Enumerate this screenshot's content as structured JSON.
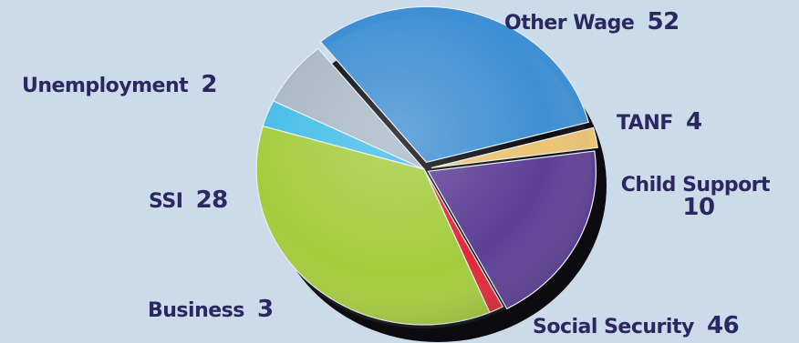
{
  "chart_data": {
    "type": "pie",
    "title": "",
    "legend": "none",
    "slices": [
      {
        "label": "Other Wage",
        "value": 52,
        "color": "#a3cc3c"
      },
      {
        "label": "TANF",
        "value": 4,
        "color": "#45bde8"
      },
      {
        "label": "Child Support",
        "value": 10,
        "color": "#a9b8c7"
      },
      {
        "label": "Social Security",
        "value": 46,
        "color": "#3e8fd3"
      },
      {
        "label": "Business",
        "value": 3,
        "color": "#ebc473"
      },
      {
        "label": "SSI",
        "value": 28,
        "color": "#5d3f96"
      },
      {
        "label": "Unemployment",
        "value": 2,
        "color": "#e0283a"
      }
    ]
  }
}
